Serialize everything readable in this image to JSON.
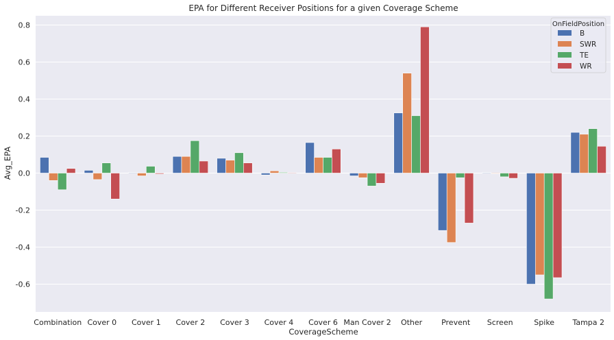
{
  "chart_data": {
    "type": "bar",
    "title": "EPA for Different Receiver Positions for a given Coverage Scheme",
    "xlabel": "CoverageScheme",
    "ylabel": "Avg_EPA",
    "ylim": [
      -0.75,
      0.85
    ],
    "yticks": [
      "-0.6",
      "-0.4",
      "-0.2",
      "0.0",
      "0.2",
      "0.4",
      "0.6",
      "0.8"
    ],
    "ytick_values": [
      -0.6,
      -0.4,
      -0.2,
      0.0,
      0.2,
      0.4,
      0.6,
      0.8
    ],
    "grid": true,
    "legend": {
      "title": "OnFieldPosition",
      "placement": "top-right"
    },
    "categories": [
      "Combination",
      "Cover 0",
      "Cover 1",
      "Cover 2",
      "Cover 3",
      "Cover 4",
      "Cover 6",
      "Man Cover 2",
      "Other",
      "Prevent",
      "Screen",
      "Spike",
      "Tampa 2"
    ],
    "series": [
      {
        "name": "B",
        "color": "#4c72b0",
        "values": [
          0.085,
          0.015,
          0.003,
          0.09,
          0.08,
          -0.01,
          0.165,
          -0.015,
          0.325,
          -0.31,
          0.003,
          -0.6,
          0.22
        ]
      },
      {
        "name": "SWR",
        "color": "#dd8452",
        "values": [
          -0.04,
          -0.035,
          -0.015,
          0.09,
          0.07,
          0.012,
          0.085,
          -0.025,
          0.54,
          -0.375,
          0.0,
          -0.55,
          0.21
        ]
      },
      {
        "name": "TE",
        "color": "#55a868",
        "values": [
          -0.09,
          0.055,
          0.037,
          0.175,
          0.11,
          0.004,
          0.085,
          -0.07,
          0.31,
          -0.025,
          -0.02,
          -0.68,
          0.24
        ]
      },
      {
        "name": "WR",
        "color": "#c44e52",
        "values": [
          0.025,
          -0.14,
          -0.005,
          0.065,
          0.055,
          0.002,
          0.13,
          -0.055,
          0.79,
          -0.27,
          -0.028,
          -0.565,
          0.145
        ]
      }
    ]
  }
}
